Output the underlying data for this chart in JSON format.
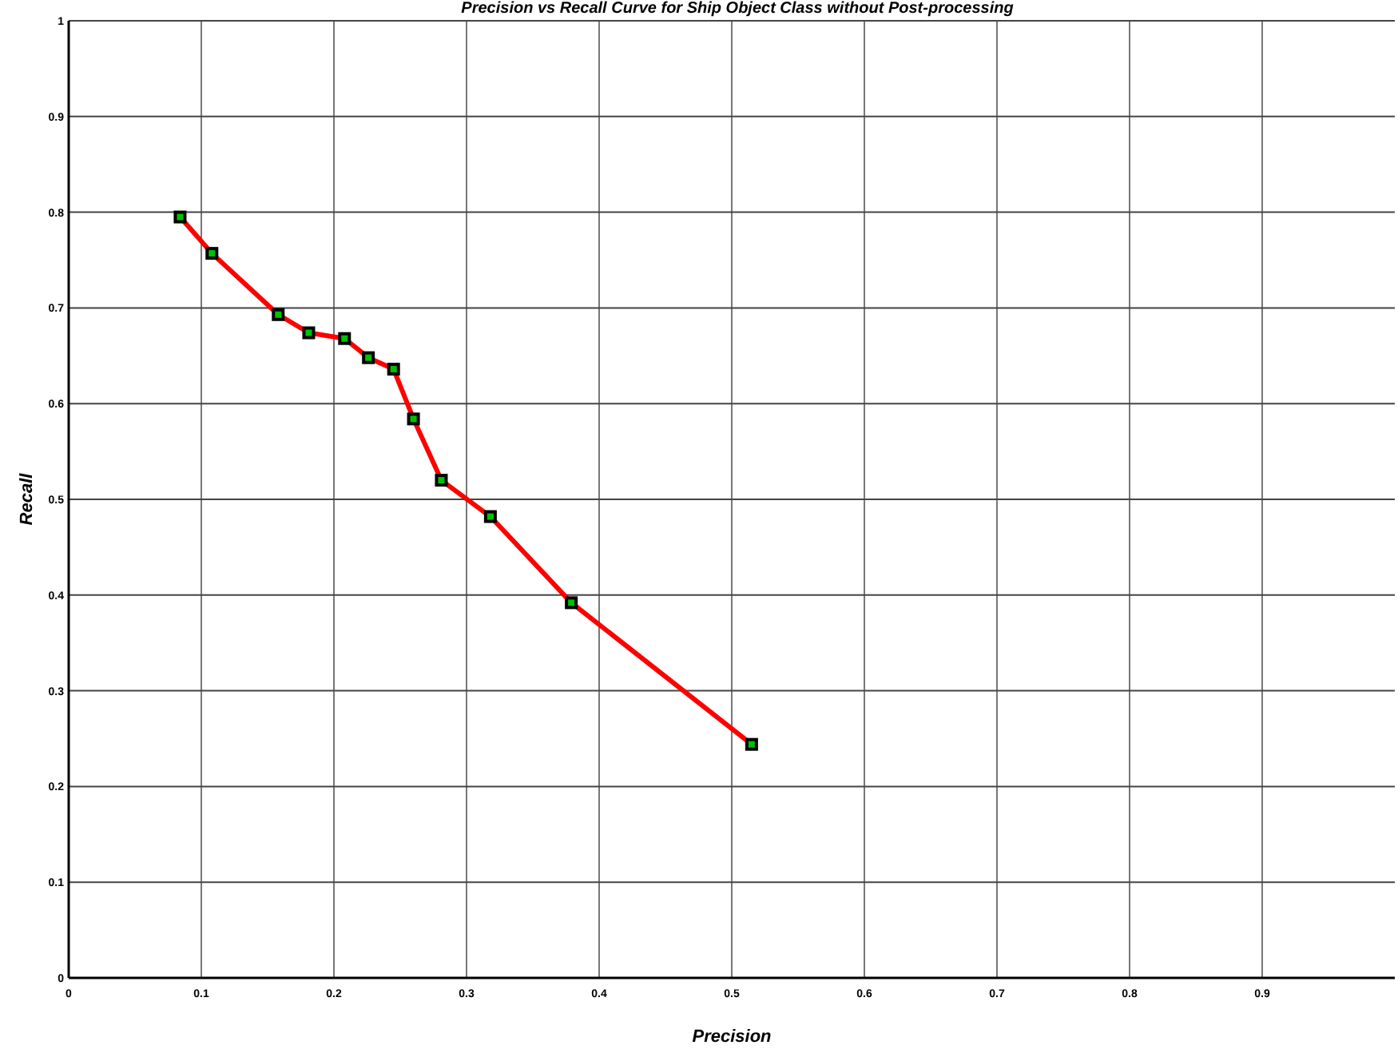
{
  "chart_data": {
    "type": "line",
    "title": "Precision vs Recall Curve for Ship Object Class without Post-processing",
    "xlabel": "Precision",
    "ylabel": "Recall",
    "x": [
      0.084,
      0.108,
      0.158,
      0.181,
      0.208,
      0.226,
      0.245,
      0.26,
      0.281,
      0.318,
      0.379,
      0.515
    ],
    "series": [
      {
        "color": "#ff0000",
        "values": [
          0.795,
          0.757,
          0.693,
          0.674,
          0.668,
          0.648,
          0.636,
          0.584,
          0.52,
          0.482,
          0.392,
          0.244
        ]
      }
    ],
    "xlim": [
      0,
      1
    ],
    "ylim": [
      0,
      1
    ],
    "xticks": [
      0,
      0.1,
      0.2,
      0.3,
      0.4,
      0.5,
      0.6,
      0.7,
      0.8,
      0.9
    ],
    "yticks": [
      0,
      0.1,
      0.2,
      0.3,
      0.4,
      0.5,
      0.6,
      0.7,
      0.8,
      0.9,
      1
    ],
    "grid": true,
    "marker": "square",
    "line_style": "solid"
  }
}
